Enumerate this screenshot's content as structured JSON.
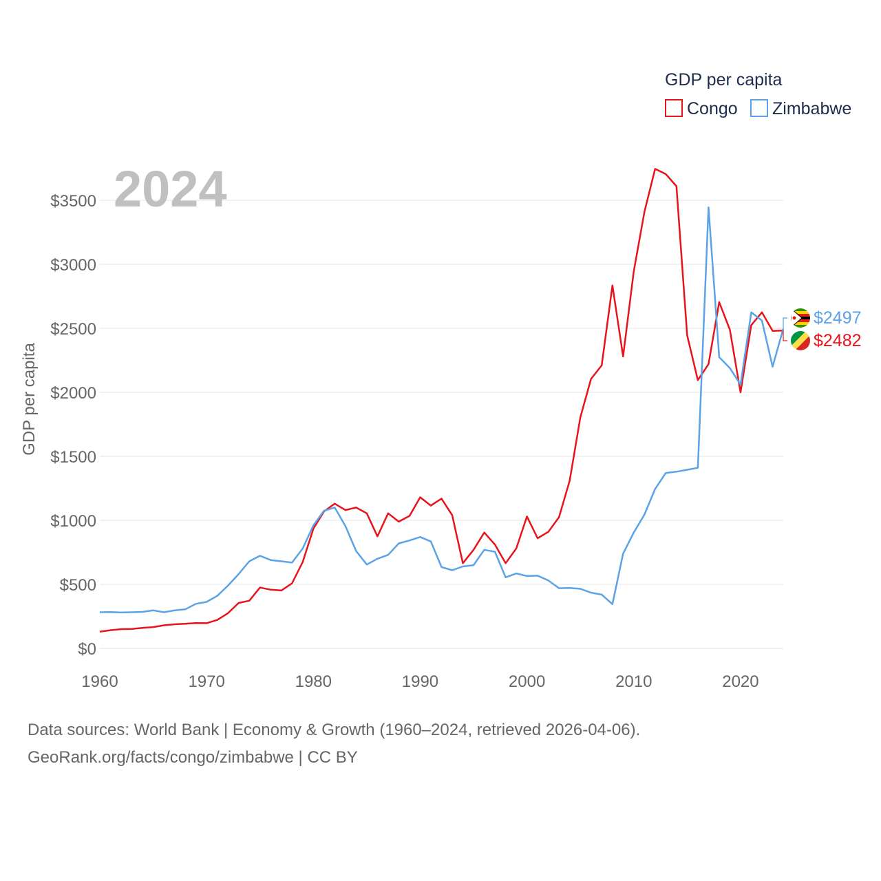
{
  "chart_data": {
    "type": "line",
    "title": "GDP per capita",
    "ylabel": "GDP per capita",
    "xlabel": "",
    "xlim": [
      1960,
      2024
    ],
    "ylim": [
      0,
      3700
    ],
    "x_ticks": [
      1960,
      1970,
      1980,
      1990,
      2000,
      2010,
      2020
    ],
    "y_ticks": [
      0,
      500,
      1000,
      1500,
      2000,
      2500,
      3000,
      3500
    ],
    "y_tick_labels": [
      "$0",
      "$500",
      "$1000",
      "$1500",
      "$2000",
      "$2500",
      "$3000",
      "$3500"
    ],
    "current_year": "2024",
    "legend_title": "GDP per capita",
    "x": [
      1960,
      1961,
      1962,
      1963,
      1964,
      1965,
      1966,
      1967,
      1968,
      1969,
      1970,
      1971,
      1972,
      1973,
      1974,
      1975,
      1976,
      1977,
      1978,
      1979,
      1980,
      1981,
      1982,
      1983,
      1984,
      1985,
      1986,
      1987,
      1988,
      1989,
      1990,
      1991,
      1992,
      1993,
      1994,
      1995,
      1996,
      1997,
      1998,
      1999,
      2000,
      2001,
      2002,
      2003,
      2004,
      2005,
      2006,
      2007,
      2008,
      2009,
      2010,
      2011,
      2012,
      2013,
      2014,
      2015,
      2016,
      2017,
      2018,
      2019,
      2020,
      2021,
      2022,
      2023,
      2024
    ],
    "series": [
      {
        "name": "Congo",
        "color": "#e8141c",
        "end_label": "$2482",
        "values": [
          130,
          142,
          150,
          152,
          160,
          166,
          180,
          188,
          192,
          198,
          197,
          222,
          275,
          355,
          372,
          475,
          458,
          452,
          508,
          675,
          935,
          1070,
          1130,
          1080,
          1100,
          1055,
          875,
          1055,
          990,
          1035,
          1180,
          1115,
          1170,
          1040,
          665,
          770,
          905,
          810,
          665,
          780,
          1030,
          860,
          910,
          1025,
          1310,
          1805,
          2105,
          2210,
          2835,
          2280,
          2945,
          3410,
          3745,
          3705,
          3610,
          2445,
          2095,
          2220,
          2705,
          2490,
          2000,
          2525,
          2625,
          2480,
          2482
        ]
      },
      {
        "name": "Zimbabwe",
        "color": "#5ba3e6",
        "end_label": "$2497",
        "values": [
          282,
          284,
          280,
          282,
          285,
          297,
          282,
          297,
          305,
          348,
          363,
          410,
          490,
          580,
          680,
          723,
          690,
          680,
          670,
          780,
          960,
          1075,
          1100,
          955,
          760,
          655,
          700,
          730,
          820,
          843,
          870,
          835,
          635,
          610,
          640,
          650,
          770,
          755,
          555,
          585,
          565,
          568,
          530,
          470,
          472,
          465,
          435,
          420,
          345,
          740,
          905,
          1045,
          1245,
          1370,
          1380,
          1395,
          1410,
          3445,
          2275,
          2190,
          2060,
          2625,
          2560,
          2200,
          2497
        ]
      }
    ]
  },
  "source": {
    "line1": "Data sources: World Bank | Economy & Growth (1960–2024, retrieved 2026-04-06).",
    "line2": "GeoRank.org/facts/congo/zimbabwe | CC BY"
  }
}
